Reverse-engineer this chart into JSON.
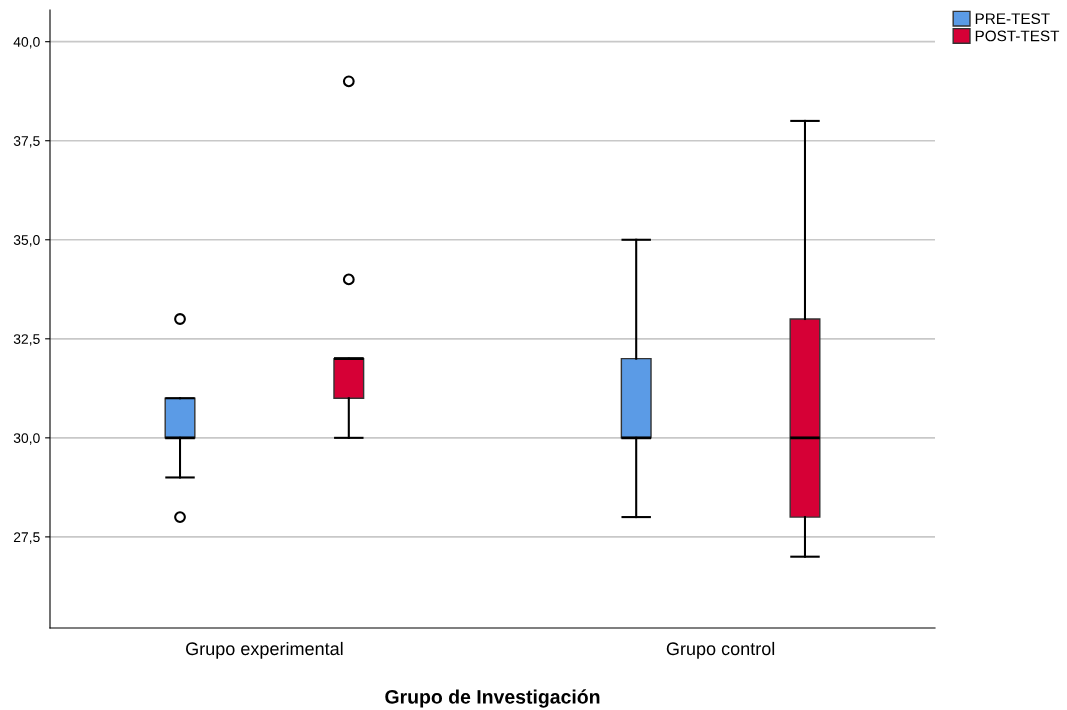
{
  "chart_data": {
    "type": "box",
    "xlabel": "Grupo de Investigación",
    "categories": [
      "Grupo experimental",
      "Grupo control"
    ],
    "series": [
      {
        "name": "PRE-TEST",
        "color": "#5b9be6",
        "boxes": [
          {
            "low": 29,
            "q1": 30,
            "median": 30,
            "q3": 31,
            "high": 31,
            "outliers": [
              33,
              28
            ]
          },
          {
            "low": 28,
            "q1": 30,
            "median": 30,
            "q3": 32,
            "high": 35
          }
        ]
      },
      {
        "name": "POST-TEST",
        "color": "#d60036",
        "boxes": [
          {
            "low": 30,
            "q1": 31,
            "median": 32,
            "q3": 32,
            "high": 32,
            "outliers": [
              34,
              39
            ]
          },
          {
            "low": 27,
            "q1": 28,
            "median": 30,
            "q3": 33,
            "high": 38
          }
        ]
      }
    ],
    "ylim": [
      25.2,
      40.8
    ],
    "yticks": [
      {
        "value": 27.5,
        "label": "27,5"
      },
      {
        "value": 30,
        "label": "30,0"
      },
      {
        "value": 32.5,
        "label": "32,5"
      },
      {
        "value": 35,
        "label": "35,0"
      },
      {
        "value": 37.5,
        "label": "37,5"
      },
      {
        "value": 40,
        "label": "40,0"
      }
    ],
    "grid": "y",
    "legend": "top right"
  }
}
